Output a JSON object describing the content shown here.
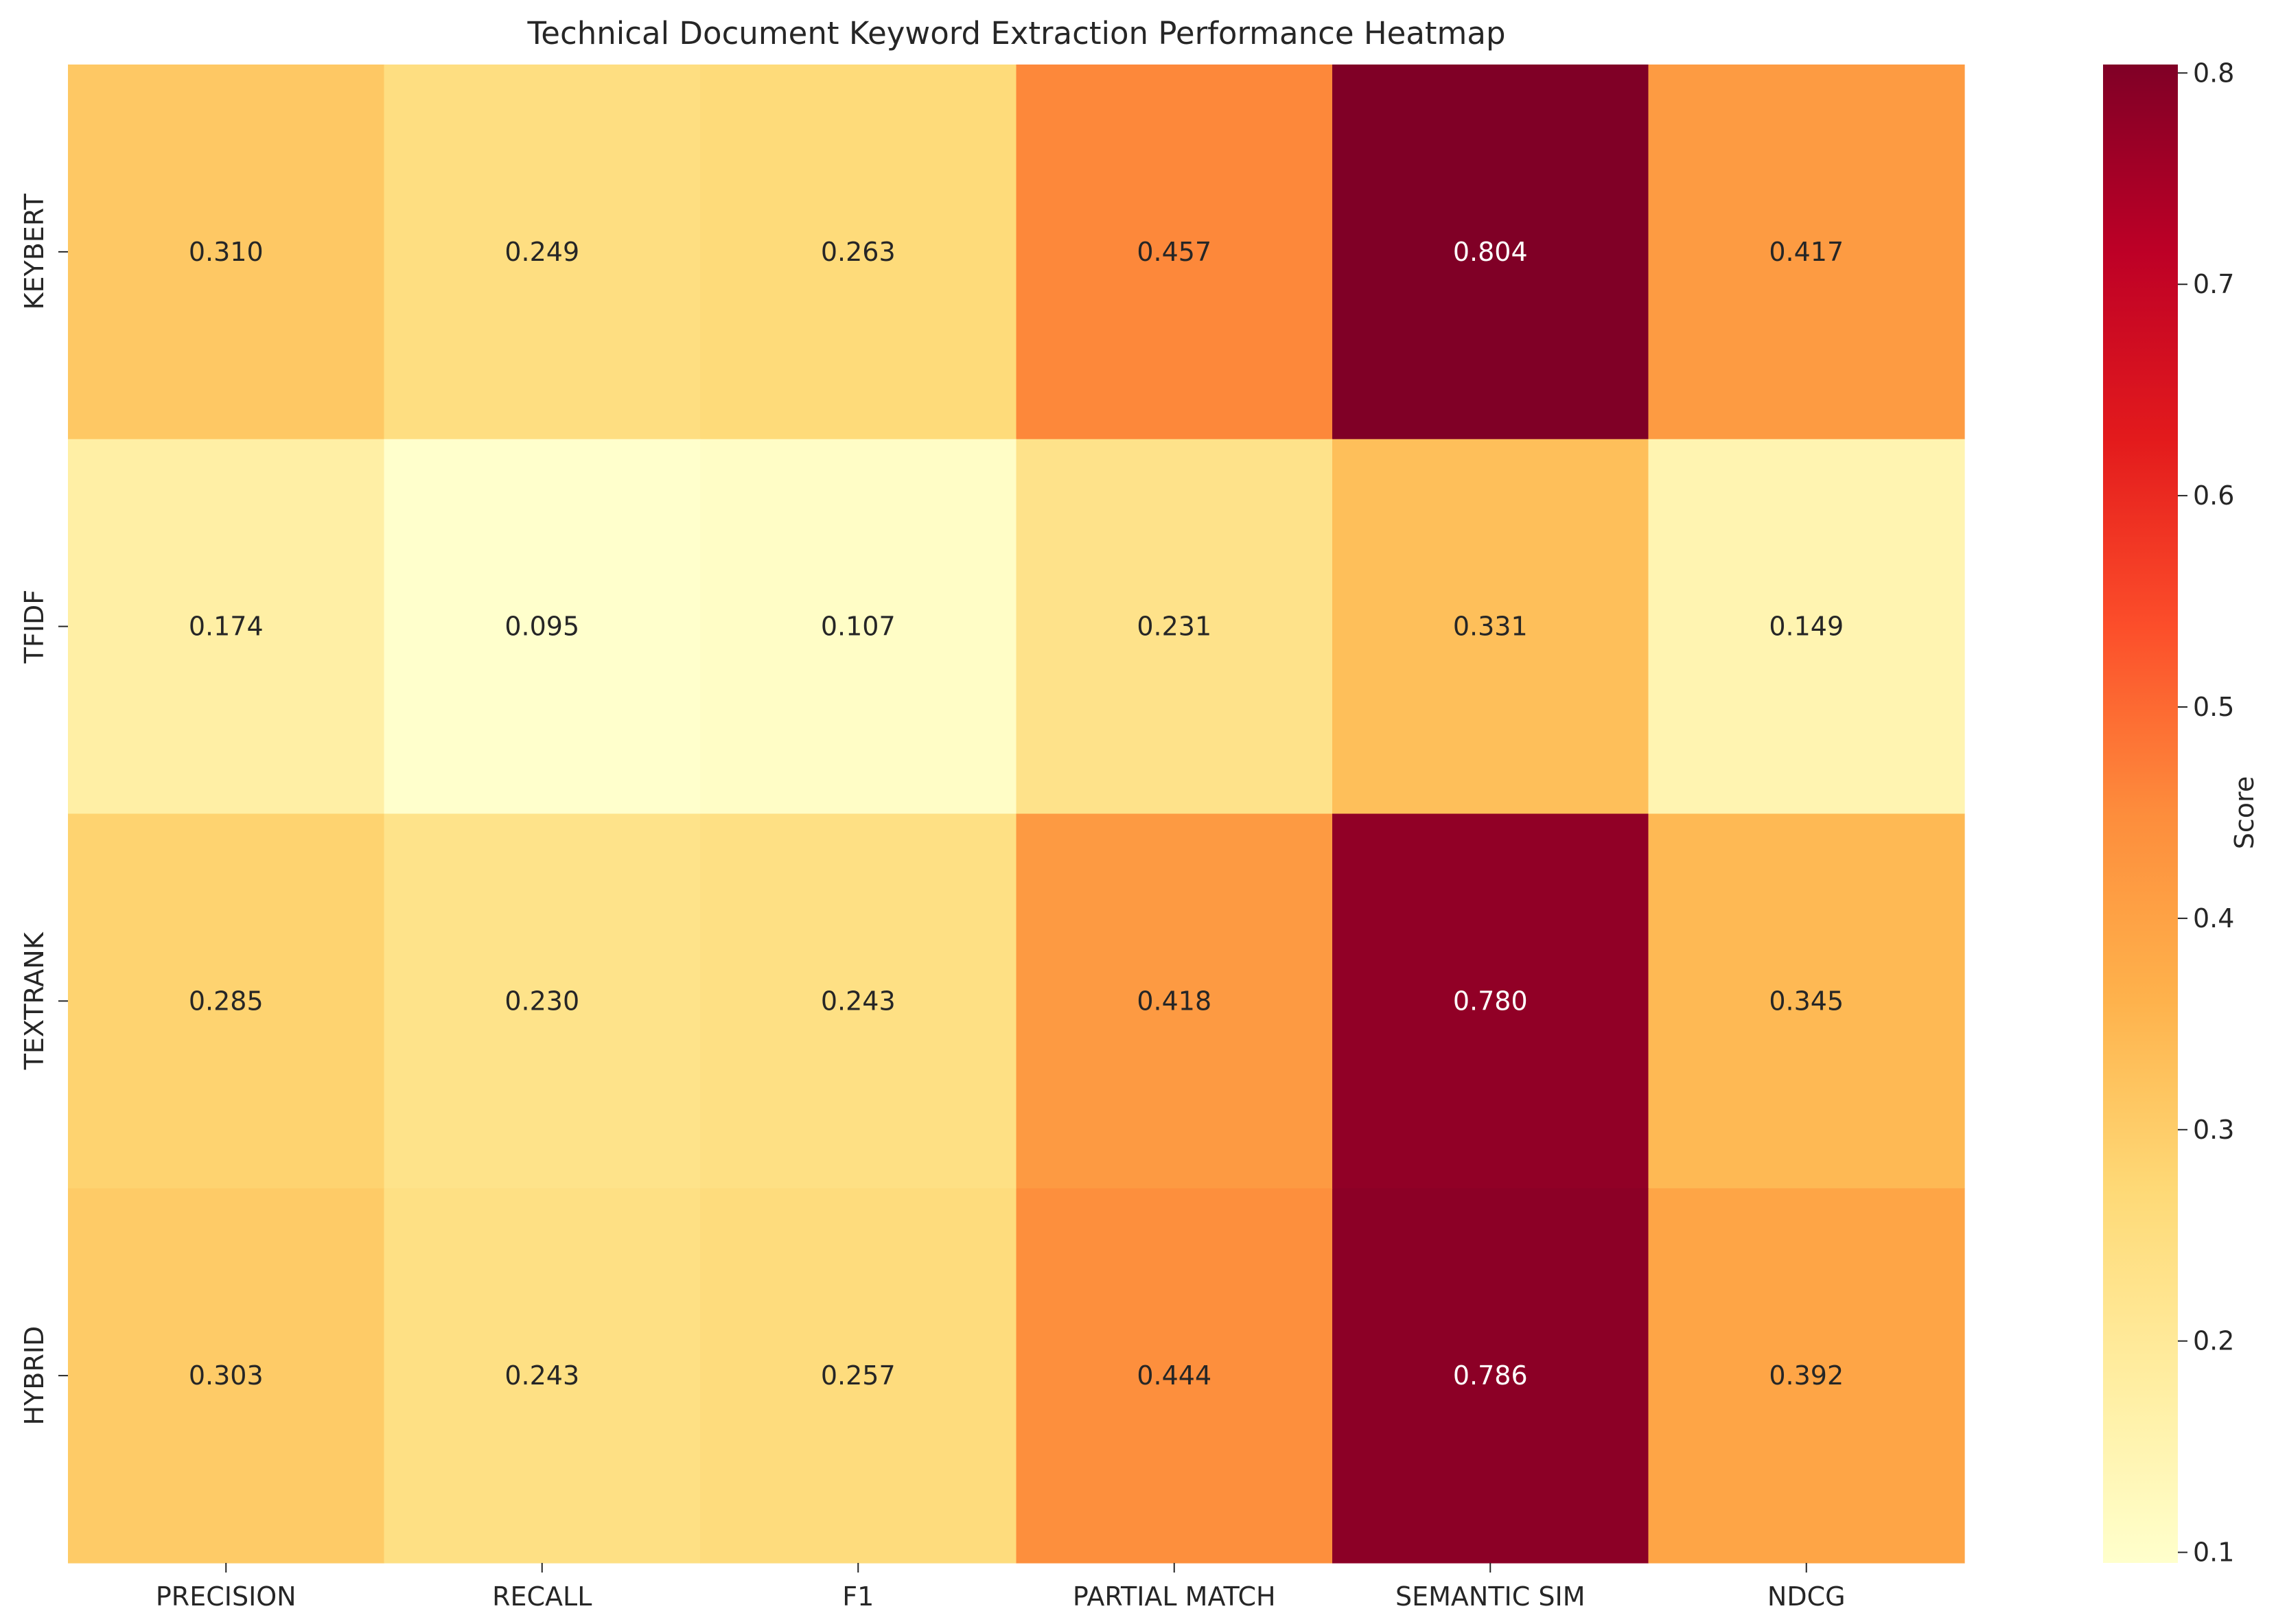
{
  "chart_data": {
    "type": "heatmap",
    "title": "Technical Document Keyword Extraction Performance Heatmap",
    "x_categories": [
      "PRECISION",
      "RECALL",
      "F1",
      "PARTIAL MATCH",
      "SEMANTIC SIM",
      "NDCG"
    ],
    "y_categories": [
      "KEYBERT",
      "TFIDF",
      "TEXTRANK",
      "HYBRID"
    ],
    "values": [
      [
        0.31,
        0.249,
        0.263,
        0.457,
        0.804,
        0.417
      ],
      [
        0.174,
        0.095,
        0.107,
        0.231,
        0.331,
        0.149
      ],
      [
        0.285,
        0.23,
        0.243,
        0.418,
        0.78,
        0.345
      ],
      [
        0.303,
        0.243,
        0.257,
        0.444,
        0.786,
        0.392
      ]
    ],
    "value_format": "3 decimals",
    "colormap": "YlOrRd",
    "colorbar": {
      "label": "Score",
      "range": [
        0.095,
        0.804
      ],
      "ticks": [
        "0.1",
        "0.2",
        "0.3",
        "0.4",
        "0.5",
        "0.6",
        "0.7",
        "0.8"
      ]
    }
  }
}
